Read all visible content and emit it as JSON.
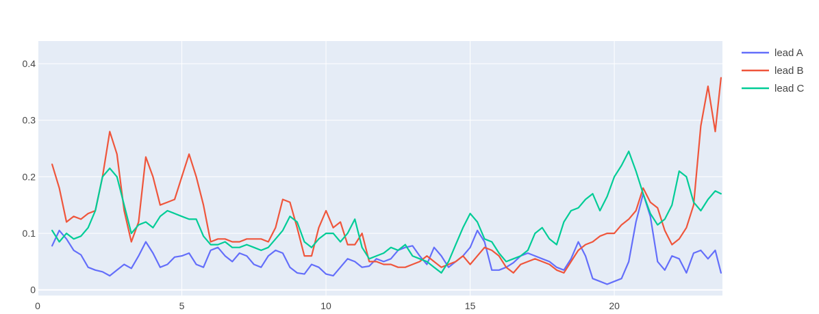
{
  "chart_data": {
    "type": "line",
    "xlim": [
      0,
      23.75
    ],
    "ylim": [
      -0.01,
      0.44
    ],
    "x_ticks": [
      0,
      5,
      10,
      15,
      20
    ],
    "y_ticks": [
      0,
      0.1,
      0.2,
      0.3,
      0.4
    ],
    "grid": true,
    "legend_position": "right",
    "plot_background": "#E5ECF6",
    "series": [
      {
        "name": "lead A",
        "color": "#636EFA",
        "x": [
          0.5,
          0.75,
          1.0,
          1.25,
          1.5,
          1.75,
          2.0,
          2.25,
          2.5,
          2.75,
          3.0,
          3.25,
          3.5,
          3.75,
          4.0,
          4.25,
          4.5,
          4.75,
          5.0,
          5.25,
          5.5,
          5.75,
          6.0,
          6.25,
          6.5,
          6.75,
          7.0,
          7.25,
          7.5,
          7.75,
          8.0,
          8.25,
          8.5,
          8.75,
          9.0,
          9.25,
          9.5,
          9.75,
          10.0,
          10.25,
          10.5,
          10.75,
          11.0,
          11.25,
          11.5,
          11.75,
          12.0,
          12.25,
          12.5,
          12.75,
          13.0,
          13.25,
          13.5,
          13.75,
          14.0,
          14.25,
          14.5,
          14.75,
          15.0,
          15.25,
          15.5,
          15.75,
          16.0,
          16.25,
          16.5,
          16.75,
          17.0,
          17.25,
          17.5,
          17.75,
          18.0,
          18.25,
          18.5,
          18.75,
          19.0,
          19.25,
          19.5,
          19.75,
          20.0,
          20.25,
          20.5,
          20.75,
          21.0,
          21.25,
          21.5,
          21.75,
          22.0,
          22.25,
          22.5,
          22.75,
          23.0,
          23.25,
          23.5,
          23.7
        ],
        "y": [
          0.078,
          0.105,
          0.09,
          0.07,
          0.062,
          0.04,
          0.035,
          0.032,
          0.025,
          0.035,
          0.045,
          0.038,
          0.06,
          0.085,
          0.065,
          0.04,
          0.045,
          0.058,
          0.06,
          0.065,
          0.045,
          0.04,
          0.07,
          0.075,
          0.06,
          0.05,
          0.065,
          0.06,
          0.045,
          0.04,
          0.06,
          0.07,
          0.065,
          0.04,
          0.03,
          0.028,
          0.045,
          0.04,
          0.028,
          0.025,
          0.04,
          0.055,
          0.05,
          0.04,
          0.042,
          0.055,
          0.05,
          0.055,
          0.07,
          0.075,
          0.078,
          0.06,
          0.045,
          0.075,
          0.06,
          0.04,
          0.05,
          0.06,
          0.075,
          0.105,
          0.085,
          0.035,
          0.035,
          0.04,
          0.048,
          0.06,
          0.065,
          0.06,
          0.055,
          0.05,
          0.04,
          0.035,
          0.055,
          0.085,
          0.06,
          0.02,
          0.015,
          0.01,
          0.015,
          0.02,
          0.05,
          0.12,
          0.17,
          0.13,
          0.05,
          0.035,
          0.06,
          0.055,
          0.03,
          0.065,
          0.07,
          0.055,
          0.07,
          0.03
        ]
      },
      {
        "name": "lead B",
        "color": "#EF553B",
        "x": [
          0.5,
          0.75,
          1.0,
          1.25,
          1.5,
          1.75,
          2.0,
          2.25,
          2.5,
          2.75,
          3.0,
          3.25,
          3.5,
          3.75,
          4.0,
          4.25,
          4.5,
          4.75,
          5.0,
          5.25,
          5.5,
          5.75,
          6.0,
          6.25,
          6.5,
          6.75,
          7.0,
          7.25,
          7.5,
          7.75,
          8.0,
          8.25,
          8.5,
          8.75,
          9.0,
          9.25,
          9.5,
          9.75,
          10.0,
          10.25,
          10.5,
          10.75,
          11.0,
          11.25,
          11.5,
          11.75,
          12.0,
          12.25,
          12.5,
          12.75,
          13.0,
          13.25,
          13.5,
          13.75,
          14.0,
          14.25,
          14.5,
          14.75,
          15.0,
          15.25,
          15.5,
          15.75,
          16.0,
          16.25,
          16.5,
          16.75,
          17.0,
          17.25,
          17.5,
          17.75,
          18.0,
          18.25,
          18.5,
          18.75,
          19.0,
          19.25,
          19.5,
          19.75,
          20.0,
          20.25,
          20.5,
          20.75,
          21.0,
          21.25,
          21.5,
          21.75,
          22.0,
          22.25,
          22.5,
          22.75,
          23.0,
          23.25,
          23.5,
          23.7
        ],
        "y": [
          0.222,
          0.18,
          0.12,
          0.13,
          0.125,
          0.135,
          0.14,
          0.2,
          0.28,
          0.24,
          0.14,
          0.085,
          0.12,
          0.235,
          0.2,
          0.15,
          0.155,
          0.16,
          0.2,
          0.24,
          0.2,
          0.15,
          0.085,
          0.09,
          0.09,
          0.085,
          0.085,
          0.09,
          0.09,
          0.09,
          0.085,
          0.11,
          0.16,
          0.155,
          0.11,
          0.06,
          0.06,
          0.11,
          0.14,
          0.11,
          0.12,
          0.08,
          0.08,
          0.1,
          0.05,
          0.05,
          0.045,
          0.045,
          0.04,
          0.04,
          0.045,
          0.05,
          0.06,
          0.05,
          0.04,
          0.045,
          0.05,
          0.06,
          0.045,
          0.06,
          0.075,
          0.07,
          0.06,
          0.04,
          0.03,
          0.045,
          0.05,
          0.055,
          0.05,
          0.045,
          0.035,
          0.03,
          0.05,
          0.07,
          0.08,
          0.085,
          0.095,
          0.1,
          0.1,
          0.115,
          0.125,
          0.14,
          0.18,
          0.155,
          0.145,
          0.105,
          0.08,
          0.09,
          0.11,
          0.15,
          0.29,
          0.36,
          0.28,
          0.375
        ]
      },
      {
        "name": "lead C",
        "color": "#00CC96",
        "x": [
          0.5,
          0.75,
          1.0,
          1.25,
          1.5,
          1.75,
          2.0,
          2.25,
          2.5,
          2.75,
          3.0,
          3.25,
          3.5,
          3.75,
          4.0,
          4.25,
          4.5,
          4.75,
          5.0,
          5.25,
          5.5,
          5.75,
          6.0,
          6.25,
          6.5,
          6.75,
          7.0,
          7.25,
          7.5,
          7.75,
          8.0,
          8.25,
          8.5,
          8.75,
          9.0,
          9.25,
          9.5,
          9.75,
          10.0,
          10.25,
          10.5,
          10.75,
          11.0,
          11.25,
          11.5,
          11.75,
          12.0,
          12.25,
          12.5,
          12.75,
          13.0,
          13.25,
          13.5,
          13.75,
          14.0,
          14.25,
          14.5,
          14.75,
          15.0,
          15.25,
          15.5,
          15.75,
          16.0,
          16.25,
          16.5,
          16.75,
          17.0,
          17.25,
          17.5,
          17.75,
          18.0,
          18.25,
          18.5,
          18.75,
          19.0,
          19.25,
          19.5,
          19.75,
          20.0,
          20.25,
          20.5,
          20.75,
          21.0,
          21.25,
          21.5,
          21.75,
          22.0,
          22.25,
          22.5,
          22.75,
          23.0,
          23.25,
          23.5,
          23.7
        ],
        "y": [
          0.105,
          0.085,
          0.1,
          0.09,
          0.095,
          0.11,
          0.14,
          0.2,
          0.215,
          0.2,
          0.15,
          0.1,
          0.115,
          0.12,
          0.11,
          0.13,
          0.14,
          0.135,
          0.13,
          0.125,
          0.125,
          0.095,
          0.08,
          0.08,
          0.085,
          0.075,
          0.075,
          0.08,
          0.075,
          0.07,
          0.075,
          0.09,
          0.105,
          0.13,
          0.12,
          0.085,
          0.075,
          0.09,
          0.1,
          0.1,
          0.085,
          0.1,
          0.125,
          0.075,
          0.055,
          0.06,
          0.065,
          0.075,
          0.07,
          0.08,
          0.06,
          0.055,
          0.05,
          0.04,
          0.03,
          0.05,
          0.08,
          0.11,
          0.135,
          0.12,
          0.09,
          0.085,
          0.065,
          0.05,
          0.055,
          0.06,
          0.07,
          0.1,
          0.11,
          0.09,
          0.08,
          0.12,
          0.14,
          0.145,
          0.16,
          0.17,
          0.14,
          0.165,
          0.2,
          0.22,
          0.245,
          0.21,
          0.17,
          0.135,
          0.115,
          0.125,
          0.15,
          0.21,
          0.2,
          0.155,
          0.14,
          0.16,
          0.175,
          0.17
        ]
      }
    ]
  }
}
